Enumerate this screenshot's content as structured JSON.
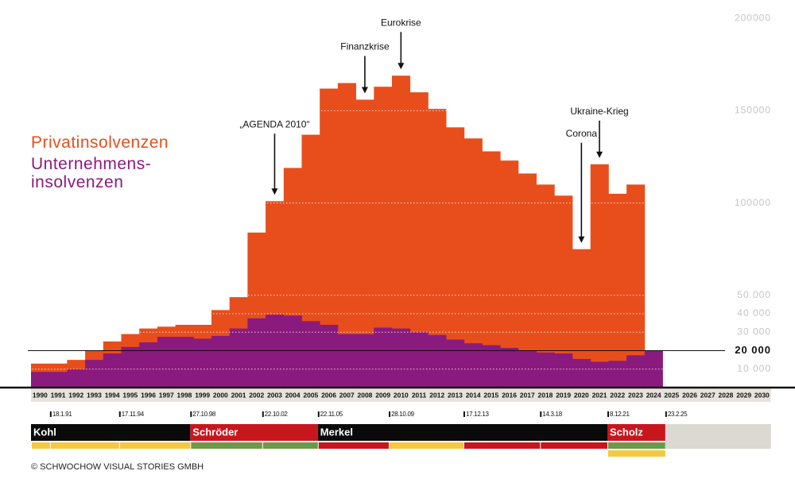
{
  "chart_data": {
    "type": "bar",
    "categories": [
      "1990",
      "1991",
      "1992",
      "1993",
      "1994",
      "1995",
      "1996",
      "1997",
      "1998",
      "1999",
      "2000",
      "2001",
      "2002",
      "2003",
      "2004",
      "2005",
      "2006",
      "2007",
      "2008",
      "2009",
      "2010",
      "2011",
      "2012",
      "2013",
      "2014",
      "2015",
      "2016",
      "2017",
      "2018",
      "2019",
      "2020",
      "2021",
      "2022",
      "2023",
      "2024",
      "2025",
      "2026",
      "2027",
      "2028",
      "2029",
      "2030"
    ],
    "series": [
      {
        "name": "Privatinsolvenzen",
        "color": "#e84e1c",
        "values": [
          13000,
          13000,
          15000,
          20000,
          25000,
          29000,
          32000,
          33000,
          34000,
          34000,
          42000,
          49000,
          84000,
          101000,
          119000,
          137000,
          162000,
          165000,
          156000,
          163000,
          169000,
          160000,
          151000,
          141000,
          135000,
          128000,
          123000,
          116000,
          110000,
          104000,
          75000,
          121000,
          105000,
          110000,
          null,
          null,
          null,
          null,
          null,
          null,
          null
        ]
      },
      {
        "name": "Unternehmens- insolvenzen",
        "color": "#8b1a7e",
        "values": [
          8500,
          8500,
          10000,
          15000,
          18500,
          22000,
          24500,
          27500,
          27500,
          26500,
          28000,
          32000,
          37500,
          39500,
          39000,
          36000,
          34000,
          29000,
          29000,
          32500,
          32000,
          30000,
          28500,
          26000,
          24000,
          23000,
          21500,
          20000,
          19000,
          18500,
          15500,
          14000,
          14500,
          17500,
          20000,
          null,
          null,
          null,
          null,
          null,
          null
        ]
      }
    ],
    "ylim": [
      0,
      210000
    ],
    "yticks": [
      {
        "value": 10000,
        "label": "10 000"
      },
      {
        "value": 20000,
        "label": "20 000"
      },
      {
        "value": 30000,
        "label": "30 000"
      },
      {
        "value": 40000,
        "label": "40 000"
      },
      {
        "value": 50000,
        "label": "50 000"
      },
      100000,
      150000,
      200000
    ],
    "highlight_ytick": 1,
    "grid": true,
    "annotations": [
      {
        "text": "„AGENDA 2010“",
        "x": "2003"
      },
      {
        "text": "Finanzkrise",
        "x": "2008"
      },
      {
        "text": "Eurokrise",
        "x": "2010"
      },
      {
        "text": "Corona",
        "x": "2020"
      },
      {
        "text": "Ukraine-Krieg",
        "x": "2021"
      }
    ],
    "terms": [
      {
        "date": null,
        "coalition": [
          "#f5c842"
        ]
      },
      {
        "date": "18.1.91",
        "coalition": [
          "#f5c842"
        ]
      },
      {
        "date": "17.11.94",
        "coalition": [
          "#f5c842"
        ]
      },
      {
        "date": "27.10.98",
        "coalition": [
          "#6a9a4a"
        ]
      },
      {
        "date": "22.10.02",
        "coalition": [
          "#6a9a4a"
        ]
      },
      {
        "date": "22.11.05",
        "coalition": [
          "#c8161d"
        ]
      },
      {
        "date": "28.10.09",
        "coalition": [
          "#f5c842"
        ]
      },
      {
        "date": "17.12.13",
        "coalition": [
          "#c8161d"
        ]
      },
      {
        "date": "14.3.18",
        "coalition": [
          "#c8161d"
        ]
      },
      {
        "date": "8.12.21",
        "coalition": [
          "#6a9a4a",
          "#f5c842"
        ]
      },
      {
        "date": "23.2.25",
        "coalition": []
      }
    ],
    "chancellors": [
      {
        "name": "Kohl",
        "color": "#0a0a0a",
        "first_term": 0
      },
      {
        "name": "Schröder",
        "color": "#c8161d",
        "first_term": 3
      },
      {
        "name": "Merkel",
        "color": "#0a0a0a",
        "first_term": 5
      },
      {
        "name": "Scholz",
        "color": "#c8161d",
        "first_term": 9
      }
    ]
  },
  "footer": {
    "copyright": "© SCHWOCHOW VISUAL STORIES GMBH"
  }
}
